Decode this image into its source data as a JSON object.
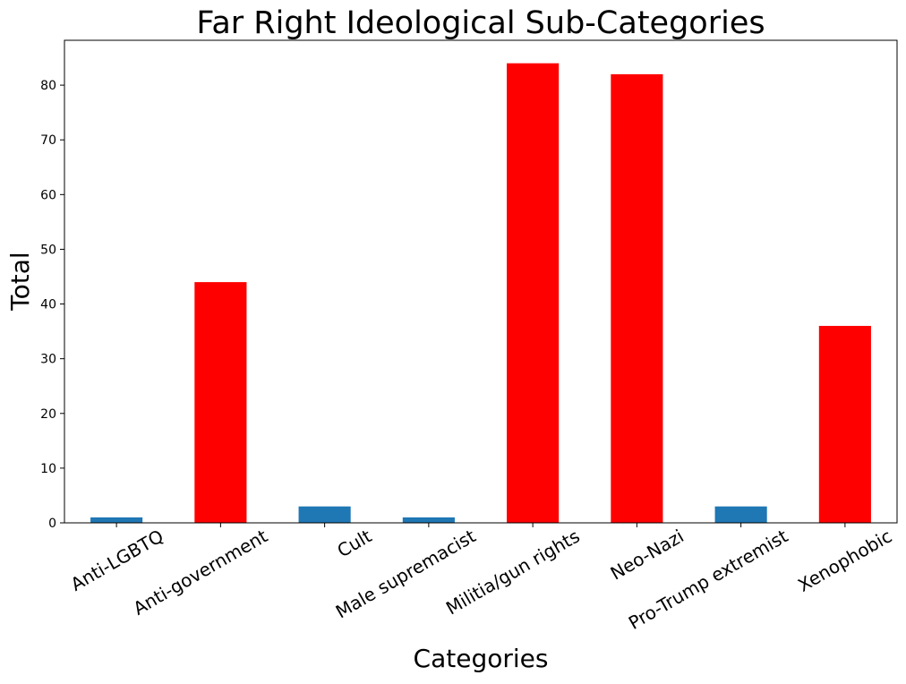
{
  "chart_data": {
    "type": "bar",
    "title": "Far Right Ideological Sub-Categories",
    "xlabel": "Categories",
    "ylabel": "Total",
    "categories": [
      "Anti-LGBTQ",
      "Anti-government",
      "Cult",
      "Male supremacist",
      "Militia/gun rights",
      "Neo-Nazi",
      "Pro-Trump extremist",
      "Xenophobic"
    ],
    "values": [
      1,
      44,
      3,
      1,
      84,
      82,
      3,
      36
    ],
    "bar_colors": [
      "#1f77b4",
      "#ff0000",
      "#1f77b4",
      "#1f77b4",
      "#ff0000",
      "#ff0000",
      "#1f77b4",
      "#ff0000"
    ],
    "ylim": [
      0,
      88.2
    ],
    "yticks": [
      0,
      10,
      20,
      30,
      40,
      50,
      60,
      70,
      80
    ],
    "grid": false,
    "legend": "none"
  }
}
